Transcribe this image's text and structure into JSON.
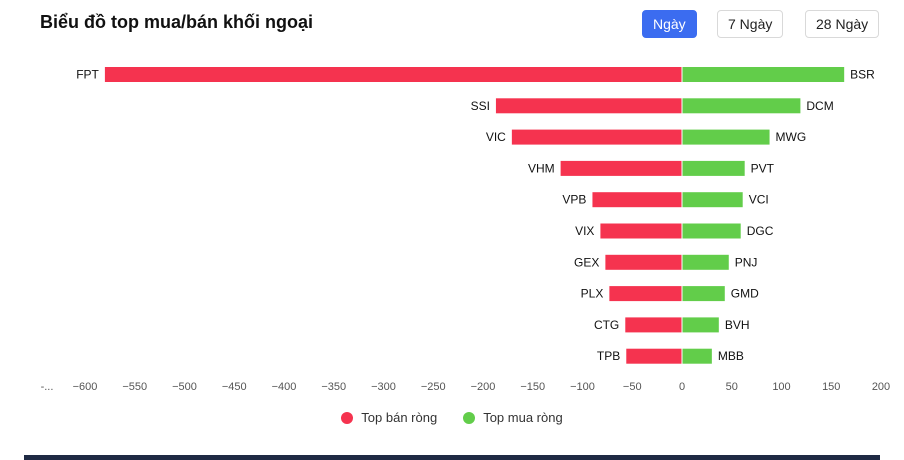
{
  "header": {
    "title": "Biểu đồ top mua/bán khối ngoại",
    "tabs": [
      "Ngày",
      "7 Ngày",
      "28 Ngày"
    ],
    "active_tab": 0
  },
  "colors": {
    "sell": "#f5334f",
    "buy": "#62cd4a",
    "active_tab": "#3b6cf0"
  },
  "chart_data": {
    "type": "bar",
    "orientation": "horizontal",
    "title": "Biểu đồ top mua/bán khối ngoại",
    "xlim": [
      -650,
      200
    ],
    "x_ticks": [
      "-...",
      "−600",
      "−550",
      "−500",
      "−450",
      "−400",
      "−350",
      "−300",
      "−250",
      "−200",
      "−150",
      "−100",
      "−50",
      "0",
      "50",
      "100",
      "150",
      "200"
    ],
    "x_tick_values": [
      -650,
      -600,
      -550,
      -500,
      -450,
      -400,
      -350,
      -300,
      -250,
      -200,
      -150,
      -100,
      -50,
      0,
      50,
      100,
      150,
      200
    ],
    "legend_position": "bottom",
    "grid": false,
    "series": [
      {
        "name": "Top bán ròng",
        "categories": [
          "FPT",
          "SSI",
          "VIC",
          "VHM",
          "VPB",
          "VIX",
          "GEX",
          "PLX",
          "CTG",
          "TPB"
        ],
        "values": [
          -580,
          -187,
          -171,
          -122,
          -90,
          -82,
          -77,
          -73,
          -57,
          -56
        ]
      },
      {
        "name": "Top mua ròng",
        "categories": [
          "BSR",
          "DCM",
          "MWG",
          "PVT",
          "VCI",
          "DGC",
          "PNJ",
          "GMD",
          "BVH",
          "MBB"
        ],
        "values": [
          163,
          119,
          88,
          63,
          61,
          59,
          47,
          43,
          37,
          30
        ]
      }
    ]
  }
}
